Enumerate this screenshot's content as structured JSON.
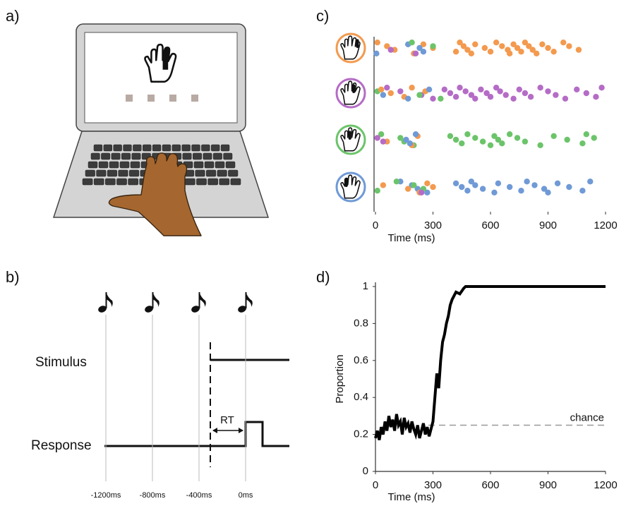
{
  "panel_labels": [
    "a)",
    "b)",
    "c)",
    "d)"
  ],
  "timing_diagram": {
    "stimulus_label": "Stimulus",
    "response_label": "Response",
    "rt_label": "RT",
    "xticks": [
      {
        "value": -1200,
        "label": "-1200ms"
      },
      {
        "value": -800,
        "label": "-800ms"
      },
      {
        "value": -400,
        "label": "-400ms"
      },
      {
        "value": 0,
        "label": "0ms"
      }
    ]
  },
  "chart_data": [
    {
      "type": "raster",
      "xlabel": "Time (ms)",
      "xlim": [
        0,
        1200
      ],
      "xticks": [
        0,
        300,
        600,
        900,
        1200
      ],
      "rows": [
        {
          "color": "#f39a4f",
          "series": [
            {
              "color": "#f39a4f",
              "x": [
                10,
                60,
                100,
                200,
                250,
                300,
                420,
                440,
                460,
                480,
                500,
                520,
                570,
                600,
                630,
                660,
                690,
                700,
                720,
                740,
                760,
                780,
                800,
                820,
                840,
                870,
                900,
                930,
                980,
                1010,
                1060
              ]
            },
            {
              "color": "#6f9ad6",
              "x": [
                5,
                170,
                230,
                250
              ]
            },
            {
              "color": "#6cc46a",
              "x": [
                190,
                300
              ]
            },
            {
              "color": "#b56cc6",
              "x": [
                80,
                210
              ]
            }
          ]
        },
        {
          "color": "#b56cc6",
          "series": [
            {
              "color": "#b56cc6",
              "x": [
                60,
                130,
                240,
                300,
                360,
                390,
                420,
                440,
                470,
                500,
                520,
                550,
                580,
                600,
                630,
                650,
                680,
                720,
                750,
                780,
                810,
                860,
                900,
                940,
                990,
                1050,
                1100,
                1150,
                1180
              ]
            },
            {
              "color": "#6cc46a",
              "x": [
                10,
                230,
                340
              ]
            },
            {
              "color": "#f39a4f",
              "x": [
                30,
                80,
                150,
                190,
                260
              ]
            },
            {
              "color": "#6f9ad6",
              "x": [
                40,
                170,
                280
              ]
            }
          ]
        },
        {
          "color": "#6cc46a",
          "series": [
            {
              "color": "#6cc46a",
              "x": [
                30,
                130,
                150,
                200,
                390,
                420,
                450,
                480,
                520,
                560,
                600,
                620,
                640,
                660,
                700,
                740,
                780,
                860,
                930,
                1000,
                1080,
                1100,
                1140
              ]
            },
            {
              "color": "#f39a4f",
              "x": [
                60,
                190,
                220
              ]
            },
            {
              "color": "#6f9ad6",
              "x": [
                160,
                180,
                210
              ]
            },
            {
              "color": "#b56cc6",
              "x": [
                10,
                40
              ]
            }
          ]
        },
        {
          "color": "#6f9ad6",
          "series": [
            {
              "color": "#6f9ad6",
              "x": [
                130,
                190,
                220,
                270,
                420,
                450,
                480,
                500,
                520,
                560,
                620,
                640,
                700,
                760,
                790,
                830,
                880,
                900,
                950,
                1010,
                1080,
                1120
              ]
            },
            {
              "color": "#f39a4f",
              "x": [
                40,
                170,
                230,
                270,
                300
              ]
            },
            {
              "color": "#6cc46a",
              "x": [
                10,
                110,
                200,
                250
              ]
            },
            {
              "color": "#b56cc6",
              "x": [
                240
              ]
            }
          ]
        }
      ]
    },
    {
      "type": "line",
      "xlabel": "Time (ms)",
      "ylabel": "Proportion",
      "xlim": [
        0,
        1200
      ],
      "ylim": [
        0,
        1
      ],
      "xticks": [
        0,
        300,
        600,
        900,
        1200
      ],
      "yticks": [
        0,
        0.2,
        0.4,
        0.6,
        0.8,
        1
      ],
      "color": "#000000",
      "x": [
        0,
        10,
        20,
        30,
        40,
        50,
        60,
        70,
        80,
        90,
        100,
        110,
        120,
        130,
        140,
        150,
        160,
        170,
        180,
        190,
        200,
        210,
        220,
        230,
        240,
        250,
        260,
        270,
        280,
        290,
        300,
        310,
        320,
        330,
        340,
        350,
        360,
        370,
        380,
        390,
        400,
        420,
        440,
        460,
        470,
        1200
      ],
      "values": [
        0.18,
        0.22,
        0.17,
        0.24,
        0.2,
        0.27,
        0.22,
        0.3,
        0.24,
        0.28,
        0.22,
        0.31,
        0.25,
        0.27,
        0.2,
        0.29,
        0.24,
        0.26,
        0.21,
        0.27,
        0.23,
        0.2,
        0.25,
        0.18,
        0.22,
        0.26,
        0.2,
        0.24,
        0.19,
        0.23,
        0.27,
        0.4,
        0.53,
        0.45,
        0.6,
        0.7,
        0.74,
        0.8,
        0.84,
        0.9,
        0.93,
        0.97,
        0.96,
        0.99,
        1,
        1
      ],
      "reference_line": {
        "value": 0.25,
        "label": "chance"
      }
    }
  ]
}
